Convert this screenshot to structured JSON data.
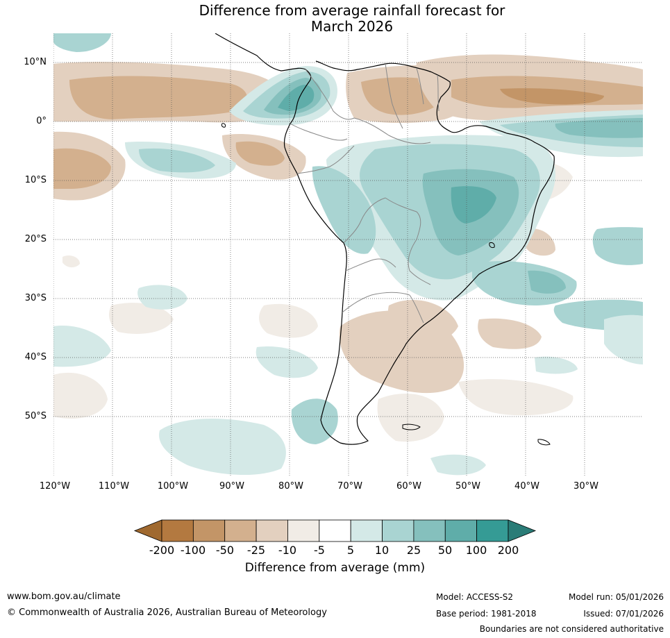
{
  "title": {
    "line1": "Difference from average rainfall forecast for",
    "line2": "March 2026"
  },
  "map": {
    "region": "South America",
    "lat_labels": [
      "10°N",
      "0°",
      "10°S",
      "20°S",
      "30°S",
      "40°S",
      "50°S"
    ],
    "lon_labels": [
      "120°W",
      "110°W",
      "100°W",
      "90°W",
      "80°W",
      "70°W",
      "60°W",
      "50°W",
      "40°W",
      "30°W"
    ]
  },
  "colorbar": {
    "labels": [
      "-200",
      "-100",
      "-50",
      "-25",
      "-10",
      "-5",
      "5",
      "10",
      "25",
      "50",
      "100",
      "200"
    ],
    "colors": [
      "#a0692f",
      "#b37940",
      "#c39567",
      "#d3b08e",
      "#e3d0bf",
      "#f1ece6",
      "#ffffff",
      "#d4e9e7",
      "#a9d4d2",
      "#85c0bd",
      "#5fada9",
      "#359b95",
      "#2a7c77"
    ],
    "title": "Difference from average (mm)"
  },
  "footer": {
    "website": "www.bom.gov.au/climate",
    "copyright": "© Commonwealth of Australia 2026, Australian Bureau of Meteorology",
    "model": "Model: ACCESS-S2",
    "model_run": "Model run: 05/01/2026",
    "base_period": "Base period: 1981-2018",
    "issued": "Issued: 07/01/2026",
    "disclaimer": "Boundaries are not considered authoritative"
  }
}
